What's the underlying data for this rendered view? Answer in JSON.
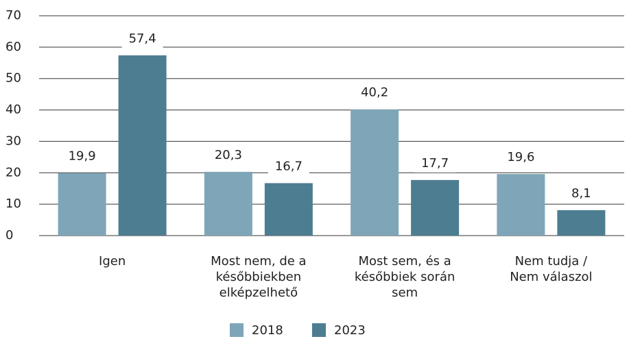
{
  "chart_data": {
    "type": "bar",
    "categories": [
      [
        "Igen"
      ],
      [
        "Most nem, de a",
        "későbbiekben",
        "elképzelhető"
      ],
      [
        "Most sem, és a",
        "későbbiek során",
        "sem"
      ],
      [
        "Nem tudja /",
        "Nem válaszol"
      ]
    ],
    "series": [
      {
        "name": "2018",
        "color": "#7fa6b8",
        "values": [
          19.9,
          20.3,
          40.2,
          19.6
        ],
        "value_labels": [
          "19,9",
          "20,3",
          "40,2",
          "19,6"
        ]
      },
      {
        "name": "2023",
        "color": "#4d7d91",
        "values": [
          57.4,
          16.7,
          17.7,
          8.1
        ],
        "value_labels": [
          "57,4",
          "16,7",
          "17,7",
          "8,1"
        ]
      }
    ],
    "ylim": [
      0,
      70
    ],
    "yticks": [
      0,
      10,
      20,
      30,
      40,
      50,
      60,
      70
    ],
    "grid": true,
    "legend": "bottom"
  }
}
